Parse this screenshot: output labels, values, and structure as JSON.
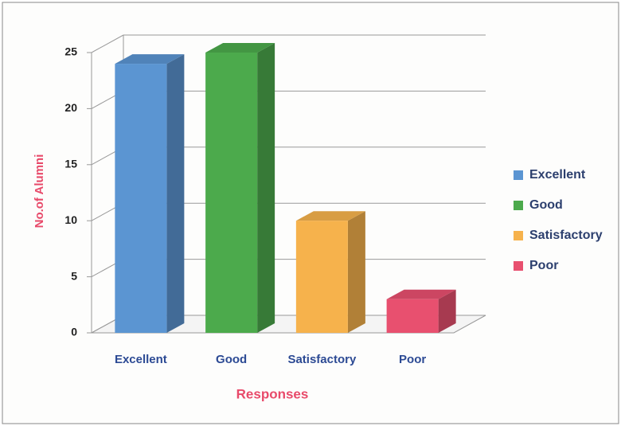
{
  "chart_data": {
    "type": "bar3d",
    "categories": [
      "Excellent",
      "Good",
      "Satisfactory",
      "Poor"
    ],
    "values": [
      24,
      25,
      10,
      3
    ],
    "colors": [
      "#5b95d2",
      "#4caa4c",
      "#f6b24c",
      "#e8506f"
    ],
    "ylim": [
      0,
      25
    ],
    "yticks": [
      0,
      5,
      10,
      15,
      20,
      25
    ],
    "grid": true,
    "ylabel": "No.of Alumni",
    "xlabel": "Responses",
    "legend": "right"
  }
}
